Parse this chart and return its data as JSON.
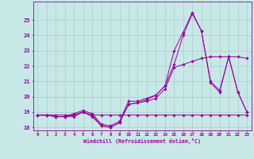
{
  "background_color": "#c8e8e8",
  "grid_color": "#aacccc",
  "line_color": "#990099",
  "xlabel": "Windchill (Refroidissement éolien,°C)",
  "xlim": [
    -0.5,
    23.5
  ],
  "ylim": [
    17.8,
    26.2
  ],
  "yticks": [
    18,
    19,
    20,
    21,
    22,
    23,
    24,
    25
  ],
  "xticks": [
    0,
    1,
    2,
    3,
    4,
    5,
    6,
    7,
    8,
    9,
    10,
    11,
    12,
    13,
    14,
    15,
    16,
    17,
    18,
    19,
    20,
    21,
    22,
    23
  ],
  "series": [
    [
      18.8,
      18.8,
      18.8,
      18.8,
      18.8,
      19.0,
      18.8,
      18.8,
      18.8,
      18.8,
      18.8,
      18.8,
      18.8,
      18.8,
      18.8,
      18.8,
      18.8,
      18.8,
      18.8,
      18.8,
      18.8,
      18.8,
      18.8,
      18.8
    ],
    [
      18.8,
      18.8,
      18.7,
      18.7,
      18.7,
      19.0,
      18.7,
      18.1,
      18.0,
      18.3,
      19.5,
      19.6,
      19.7,
      19.9,
      20.5,
      21.9,
      22.1,
      22.3,
      22.5,
      22.6,
      22.6,
      22.6,
      22.6,
      22.5
    ],
    [
      18.8,
      18.8,
      18.7,
      18.7,
      18.8,
      19.0,
      18.8,
      18.1,
      18.0,
      18.3,
      19.5,
      19.6,
      19.8,
      20.1,
      20.7,
      22.1,
      24.0,
      25.4,
      24.3,
      20.9,
      20.3,
      22.6,
      20.3,
      19.0
    ],
    [
      18.8,
      18.8,
      18.7,
      18.7,
      18.9,
      19.1,
      18.9,
      18.2,
      18.1,
      18.4,
      19.7,
      19.7,
      19.9,
      20.1,
      20.7,
      23.0,
      24.2,
      25.5,
      24.3,
      21.0,
      20.4,
      22.6,
      20.3,
      19.0
    ]
  ]
}
